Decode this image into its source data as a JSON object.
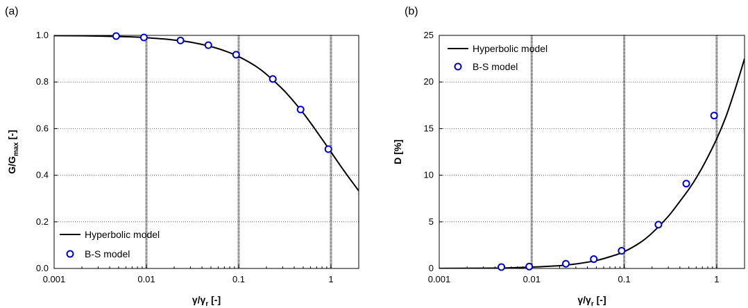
{
  "chart_data": [
    {
      "panel_letter": "(a)",
      "type": "scatter",
      "x_scale": "log",
      "xlim": [
        0.001,
        2
      ],
      "ylim": [
        0,
        1.0
      ],
      "grid": true,
      "legend_position": "bottom-left",
      "xlabel": {
        "main": "γ/γ",
        "sub": "r",
        "unit": " [-]"
      },
      "ylabel": {
        "main": "G/G",
        "sub": "max",
        "unit": " [-]"
      },
      "xticks": [
        0.001,
        0.01,
        0.1,
        1
      ],
      "xtick_labels": [
        "0.001",
        "0.01",
        "0.1",
        "1"
      ],
      "yticks": [
        0,
        0.2,
        0.4,
        0.6,
        0.8,
        1.0
      ],
      "ytick_labels": [
        "0.0",
        "0.2",
        "0.4",
        "0.6",
        "0.8",
        "1.0"
      ],
      "series": [
        {
          "name": "Hyperbolic model",
          "kind": "line",
          "color": "#000000",
          "x": [
            0.001,
            0.002,
            0.003,
            0.005,
            0.0075,
            0.01,
            0.015,
            0.02,
            0.03,
            0.05,
            0.075,
            0.1,
            0.15,
            0.2,
            0.3,
            0.4,
            0.5,
            0.6,
            0.75,
            1.0,
            1.25,
            1.5,
            1.75,
            2.0
          ],
          "y": [
            0.999,
            0.998,
            0.997,
            0.995,
            0.993,
            0.99,
            0.985,
            0.98,
            0.971,
            0.952,
            0.93,
            0.909,
            0.87,
            0.833,
            0.769,
            0.714,
            0.667,
            0.625,
            0.571,
            0.5,
            0.444,
            0.4,
            0.364,
            0.333
          ]
        },
        {
          "name": "B-S model",
          "kind": "scatter",
          "color": "#0000CC",
          "x": [
            0.0047,
            0.0094,
            0.0234,
            0.0469,
            0.0938,
            0.2344,
            0.4688,
            0.9375
          ],
          "y": [
            0.997,
            0.991,
            0.978,
            0.958,
            0.917,
            0.813,
            0.682,
            0.512
          ]
        }
      ]
    },
    {
      "panel_letter": "(b)",
      "type": "scatter",
      "x_scale": "log",
      "xlim": [
        0.001,
        2
      ],
      "ylim": [
        0,
        25
      ],
      "grid": true,
      "legend_position": "top-left",
      "xlabel": {
        "main": "γ/γ",
        "sub": "r",
        "unit": " [-]"
      },
      "ylabel": {
        "main": "D [%]",
        "sub": "",
        "unit": ""
      },
      "xticks": [
        0.001,
        0.01,
        0.1,
        1
      ],
      "xtick_labels": [
        "0.001",
        "0.01",
        "0.1",
        "1"
      ],
      "yticks": [
        0,
        5,
        10,
        15,
        20,
        25
      ],
      "ytick_labels": [
        "0",
        "5",
        "10",
        "15",
        "20",
        "25"
      ],
      "series": [
        {
          "name": "Hyperbolic model",
          "kind": "line",
          "color": "#000000",
          "x": [
            0.001,
            0.003,
            0.005,
            0.01,
            0.02,
            0.03,
            0.05,
            0.075,
            0.1,
            0.15,
            0.2,
            0.3,
            0.4,
            0.5,
            0.6,
            0.75,
            1.0,
            1.25,
            1.5,
            1.75,
            2.0
          ],
          "y": [
            0.01,
            0.03,
            0.05,
            0.15,
            0.3,
            0.48,
            0.85,
            1.35,
            1.8,
            2.8,
            3.8,
            5.6,
            7.2,
            8.5,
            9.7,
            11.4,
            13.9,
            16.2,
            18.5,
            20.6,
            22.5
          ]
        },
        {
          "name": "B-S model",
          "kind": "scatter",
          "color": "#0000CC",
          "x": [
            0.0047,
            0.0094,
            0.0234,
            0.0469,
            0.0938,
            0.2344,
            0.4688,
            0.9375
          ],
          "y": [
            0.15,
            0.2,
            0.5,
            1.0,
            1.9,
            4.7,
            9.1,
            16.4
          ]
        }
      ]
    }
  ]
}
